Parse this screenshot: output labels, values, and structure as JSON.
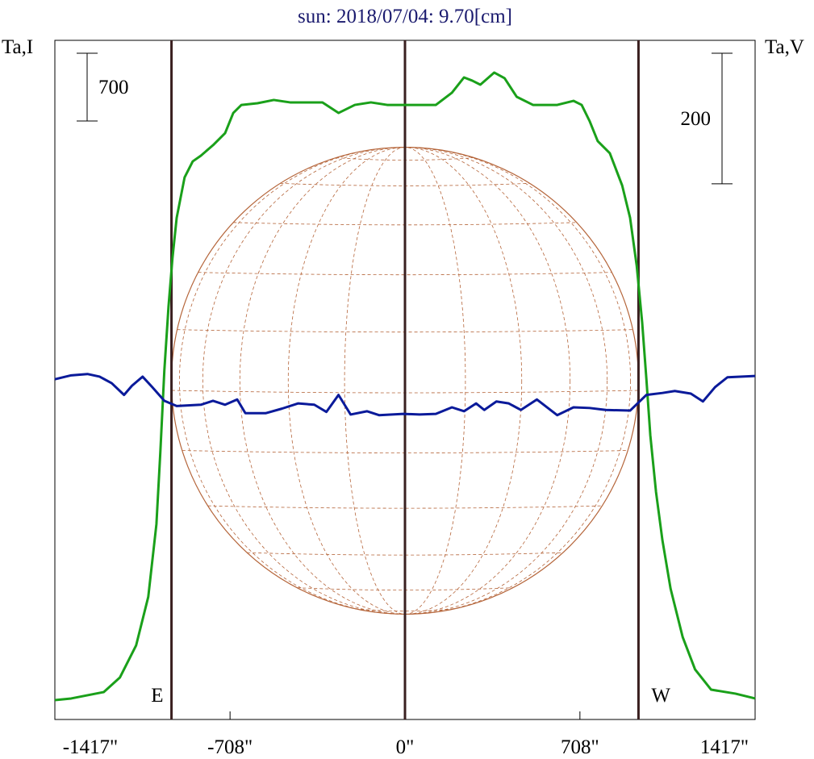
{
  "chart_data": {
    "type": "line",
    "title": "sun: 2018/07/04: 9.70[cm]",
    "ylabel": "Ta,I",
    "y2label": "Ta,V",
    "xlim": [
      -1417,
      1417
    ],
    "ylim": [
      -200,
      6814
    ],
    "y2lim": [
      -520,
      520
    ],
    "xticks": [
      {
        "value": -1417,
        "label": "-1417\""
      },
      {
        "value": -708,
        "label": "-708\""
      },
      {
        "value": 0,
        "label": "0\""
      },
      {
        "value": 708,
        "label": "708\""
      },
      {
        "value": 1417,
        "label": "1417\""
      }
    ],
    "vlines": [
      -945,
      0,
      945
    ],
    "vline_color": "#3a2020",
    "annotations": [
      "E",
      "W"
    ],
    "scale_bars": [
      {
        "value": 700,
        "axis": "y"
      },
      {
        "value": 200,
        "axis": "y2"
      }
    ],
    "series": [
      {
        "color": "#1aa01a",
        "axis": "y",
        "x": [
          -1417,
          -1351,
          -1219,
          -1154,
          -1088,
          -1039,
          -1006,
          -990,
          -974,
          -957,
          -941,
          -924,
          -892,
          -859,
          -826,
          -777,
          -728,
          -695,
          -662,
          -597,
          -531,
          -465,
          -334,
          -269,
          -203,
          -138,
          -72,
          0,
          125,
          190,
          239,
          272,
          305,
          361,
          403,
          452,
          518,
          616,
          682,
          715,
          747,
          780,
          829,
          879,
          911,
          938,
          960,
          977,
          993,
          1016,
          1042,
          1075,
          1124,
          1174,
          1239,
          1337,
          1417
        ],
        "values": [
          0,
          17,
          83,
          233,
          566,
          1066,
          1816,
          2566,
          3399,
          4065,
          4565,
          4981,
          5398,
          5564,
          5623,
          5731,
          5856,
          6064,
          6147,
          6164,
          6198,
          6173,
          6173,
          6064,
          6147,
          6173,
          6147,
          6147,
          6147,
          6273,
          6431,
          6398,
          6356,
          6481,
          6423,
          6231,
          6147,
          6147,
          6189,
          6147,
          5981,
          5773,
          5648,
          5315,
          4981,
          4482,
          3898,
          3315,
          2732,
          2149,
          1649,
          1150,
          650,
          317,
          108,
          67,
          17
        ]
      },
      {
        "color": "#0a1a9a",
        "axis": "y2",
        "x": [
          -1417,
          -1351,
          -1285,
          -1236,
          -1187,
          -1137,
          -1105,
          -1062,
          -1023,
          -974,
          -924,
          -826,
          -777,
          -728,
          -679,
          -646,
          -564,
          -498,
          -433,
          -367,
          -318,
          -269,
          -220,
          -154,
          -105,
          -7,
          59,
          125,
          190,
          239,
          288,
          321,
          370,
          420,
          469,
          534,
          616,
          682,
          747,
          813,
          911,
          977,
          1042,
          1092,
          1157,
          1206,
          1255,
          1305,
          1417
        ],
        "values": [
          1,
          7,
          9,
          5,
          -5,
          -23,
          -9,
          5,
          -11,
          -32,
          -40,
          -38,
          -32,
          -38,
          -30,
          -51,
          -51,
          -44,
          -36,
          -38,
          -49,
          -23,
          -53,
          -48,
          -54,
          -52,
          -53,
          -52,
          -42,
          -48,
          -36,
          -46,
          -33,
          -36,
          -46,
          -30,
          -54,
          -42,
          -43,
          -46,
          -47,
          -23,
          -20,
          -17,
          -21,
          -33,
          -11,
          4,
          6
        ]
      }
    ]
  }
}
